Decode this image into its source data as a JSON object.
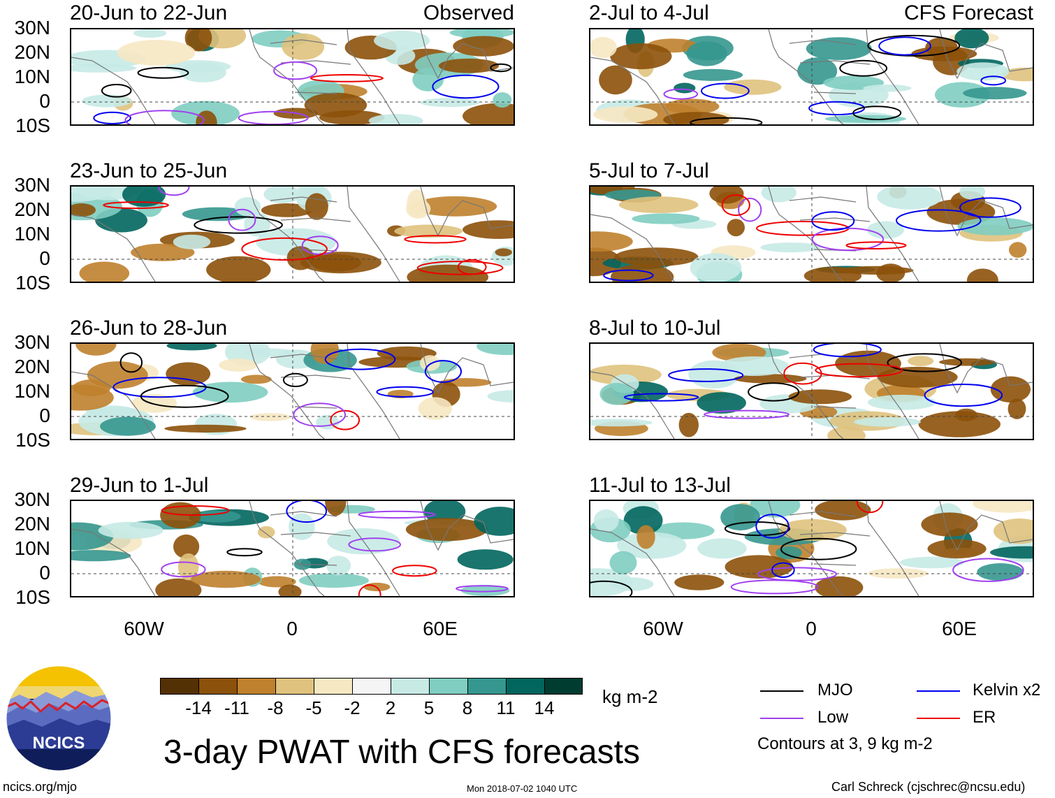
{
  "left_column": {
    "tag": "Observed",
    "panels": [
      {
        "title": "20-Jun to 22-Jun"
      },
      {
        "title": "23-Jun to 25-Jun"
      },
      {
        "title": "26-Jun to 28-Jun"
      },
      {
        "title": "29-Jun to 1-Jul"
      }
    ]
  },
  "right_column": {
    "tag": "CFS Forecast",
    "panels": [
      {
        "title": "2-Jul to 4-Jul"
      },
      {
        "title": "5-Jul to 7-Jul"
      },
      {
        "title": "8-Jul to 10-Jul"
      },
      {
        "title": "11-Jul to 13-Jul"
      }
    ]
  },
  "lat_labels": [
    "30N",
    "20N",
    "10N",
    "0",
    "10S"
  ],
  "lon_labels": [
    "60W",
    "0",
    "60E"
  ],
  "colorbar": {
    "unit": "kg m-2",
    "labels": [
      "-14",
      "-11",
      "-8",
      "-5",
      "-2",
      "2",
      "5",
      "8",
      "11",
      "14"
    ],
    "colors": [
      "#543005",
      "#8c510a",
      "#bf812d",
      "#dfc27d",
      "#f6e8c3",
      "#f5f5f5",
      "#c7eae5",
      "#80cdc1",
      "#35978f",
      "#01665e",
      "#003c30"
    ]
  },
  "legend": {
    "items": [
      {
        "label": "MJO",
        "color": "#000000"
      },
      {
        "label": "Kelvin x2",
        "color": "#0000ee"
      },
      {
        "label": "Low",
        "color": "#a040f0"
      },
      {
        "label": "ER",
        "color": "#ee0000"
      }
    ],
    "note": "Contours at 3, 9 kg m-2"
  },
  "logo": {
    "text": "NCICS"
  },
  "title": "3-day PWAT with CFS forecasts",
  "footer": {
    "left": "ncics.org/mjo",
    "center": "Mon 2018-07-02 1040 UTC",
    "right": "Carl Schreck (cjschrec@ncsu.edu)"
  }
}
